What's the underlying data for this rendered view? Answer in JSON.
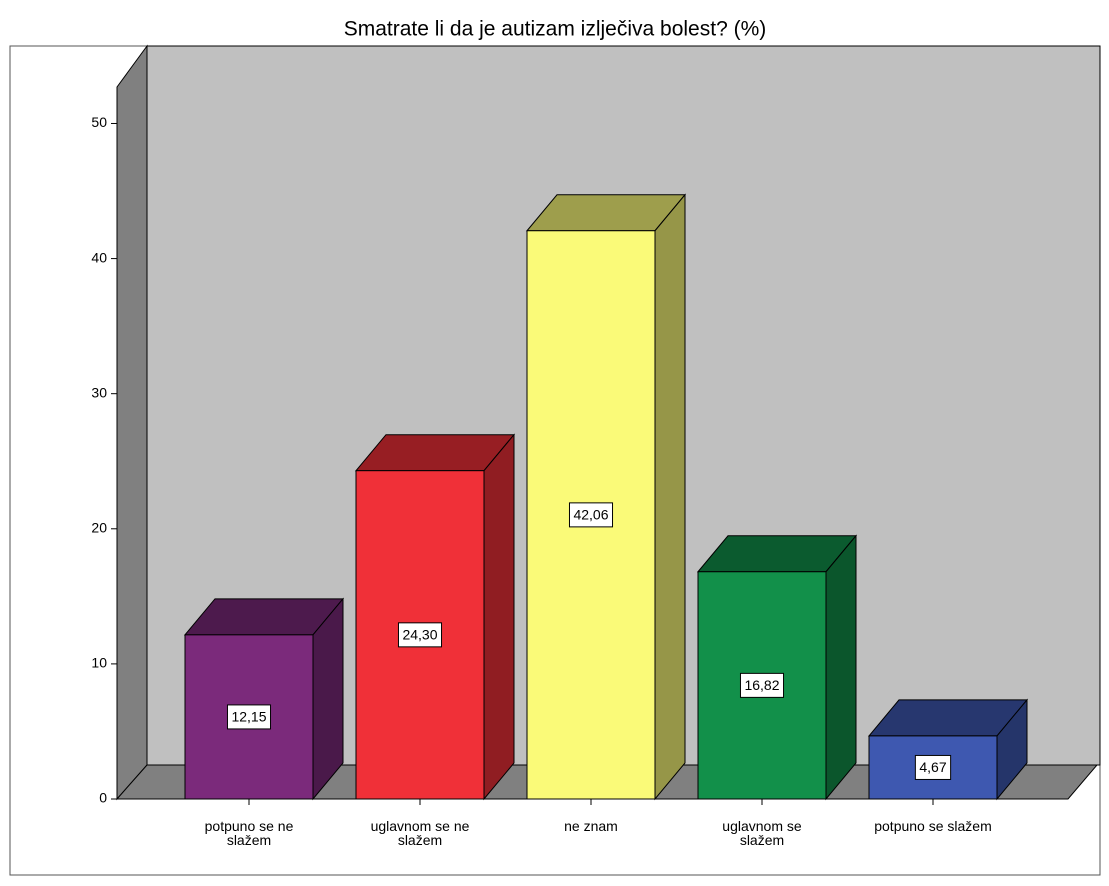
{
  "chart_data": {
    "type": "bar3d",
    "title": "Smatrate li da je autizam izlječiva bolest? (%)",
    "categories": [
      "potpuno se ne\nslažem",
      "uglavnom se ne\nslažem",
      "ne znam",
      "uglavnom se\nslažem",
      "potpuno se slažem"
    ],
    "values": [
      12.15,
      24.3,
      42.06,
      16.82,
      4.67
    ],
    "value_labels": [
      "12,15",
      "24,30",
      "42,06",
      "16,82",
      "4,67"
    ],
    "colors": [
      "#7b2a7b",
      "#f03038",
      "#fafa78",
      "#12904a",
      "#3e58b0"
    ],
    "ylim": [
      0,
      52.7
    ],
    "yticks": [
      0,
      10,
      20,
      30,
      40,
      50
    ]
  }
}
